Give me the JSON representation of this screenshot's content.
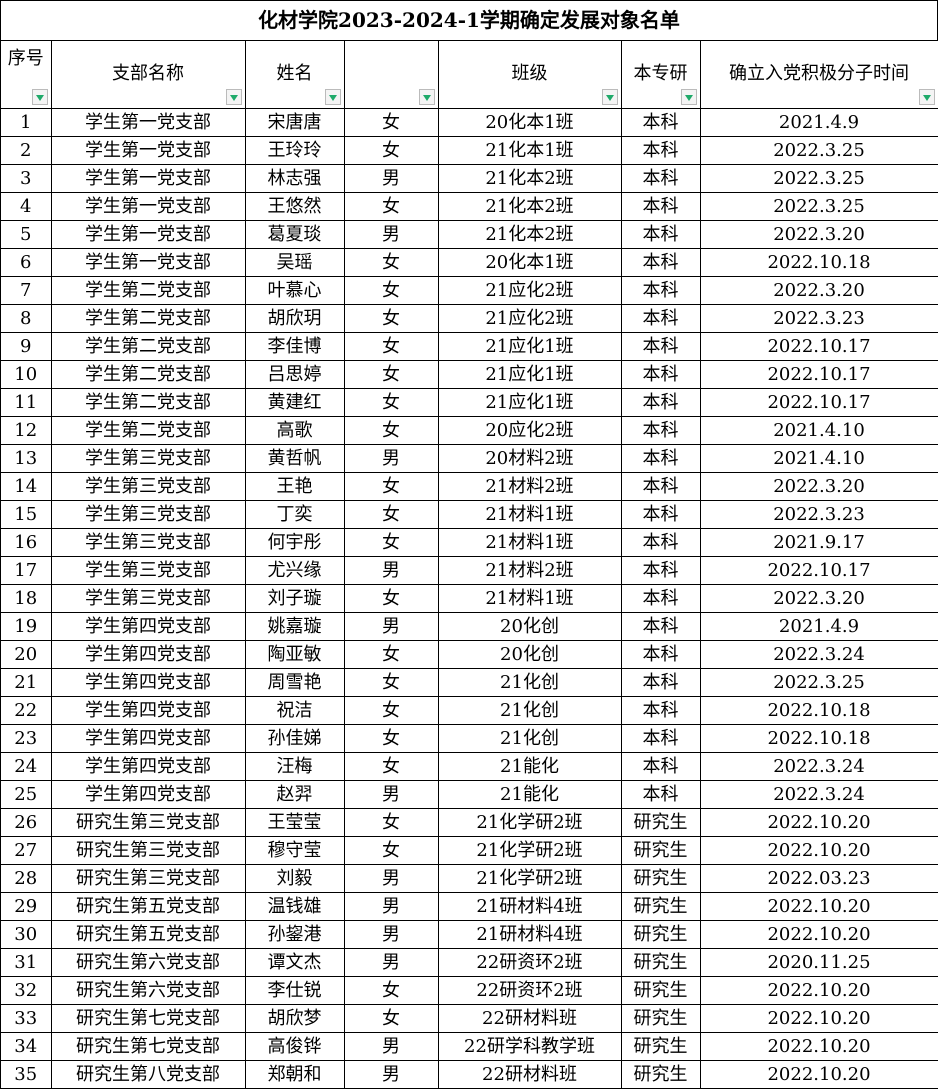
{
  "title": "化材学院2023-2024-1学期确定发展对象名单",
  "headers": [
    "序号",
    "支部名称",
    "姓名",
    "",
    "班级",
    "本专研",
    "确立入党积极分子时间"
  ],
  "filter_color": "#1faa6a",
  "rows": [
    [
      "1",
      "学生第一党支部",
      "宋唐唐",
      "女",
      "20化本1班",
      "本科",
      "2021.4.9"
    ],
    [
      "2",
      "学生第一党支部",
      "王玲玲",
      "女",
      "21化本1班",
      "本科",
      "2022.3.25"
    ],
    [
      "3",
      "学生第一党支部",
      "林志强",
      "男",
      "21化本2班",
      "本科",
      "2022.3.25"
    ],
    [
      "4",
      "学生第一党支部",
      "王悠然",
      "女",
      "21化本2班",
      "本科",
      "2022.3.25"
    ],
    [
      "5",
      "学生第一党支部",
      "葛夏琰",
      "男",
      "21化本2班",
      "本科",
      "2022.3.20"
    ],
    [
      "6",
      "学生第一党支部",
      "吴瑶",
      "女",
      "20化本1班",
      "本科",
      "2022.10.18"
    ],
    [
      "7",
      "学生第二党支部",
      "叶慕心",
      "女",
      "21应化2班",
      "本科",
      "2022.3.20"
    ],
    [
      "8",
      "学生第二党支部",
      "胡欣玥",
      "女",
      "21应化2班",
      "本科",
      "2022.3.23"
    ],
    [
      "9",
      "学生第二党支部",
      "李佳博",
      "女",
      "21应化1班",
      "本科",
      "2022.10.17"
    ],
    [
      "10",
      "学生第二党支部",
      "吕思婷",
      "女",
      "21应化1班",
      "本科",
      "2022.10.17"
    ],
    [
      "11",
      "学生第二党支部",
      "黄建红",
      "女",
      "21应化1班",
      "本科",
      "2022.10.17"
    ],
    [
      "12",
      "学生第二党支部",
      "高歌",
      "女",
      "20应化2班",
      "本科",
      "2021.4.10"
    ],
    [
      "13",
      "学生第三党支部",
      "黄哲帆",
      "男",
      "20材料2班",
      "本科",
      "2021.4.10"
    ],
    [
      "14",
      "学生第三党支部",
      "王艳",
      "女",
      "21材料2班",
      "本科",
      "2022.3.20"
    ],
    [
      "15",
      "学生第三党支部",
      "丁奕",
      "女",
      "21材料1班",
      "本科",
      "2022.3.23"
    ],
    [
      "16",
      "学生第三党支部",
      "何宇彤",
      "女",
      "21材料1班",
      "本科",
      "2021.9.17"
    ],
    [
      "17",
      "学生第三党支部",
      "尤兴缘",
      "男",
      "21材料2班",
      "本科",
      "2022.10.17"
    ],
    [
      "18",
      "学生第三党支部",
      "刘子璇",
      "女",
      "21材料1班",
      "本科",
      "2022.3.20"
    ],
    [
      "19",
      "学生第四党支部",
      "姚嘉璇",
      "男",
      "20化创",
      "本科",
      "2021.4.9"
    ],
    [
      "20",
      "学生第四党支部",
      "陶亚敏",
      "女",
      "20化创",
      "本科",
      "2022.3.24"
    ],
    [
      "21",
      "学生第四党支部",
      "周雪艳",
      "女",
      "21化创",
      "本科",
      "2022.3.25"
    ],
    [
      "22",
      "学生第四党支部",
      "祝洁",
      "女",
      "21化创",
      "本科",
      "2022.10.18"
    ],
    [
      "23",
      "学生第四党支部",
      "孙佳娣",
      "女",
      "21化创",
      "本科",
      "2022.10.18"
    ],
    [
      "24",
      "学生第四党支部",
      "汪梅",
      "女",
      "21能化",
      "本科",
      "2022.3.24"
    ],
    [
      "25",
      "学生第四党支部",
      "赵羿",
      "男",
      "21能化",
      "本科",
      "2022.3.24"
    ],
    [
      "26",
      "研究生第三党支部",
      "王莹莹",
      "女",
      "21化学研2班",
      "研究生",
      "2022.10.20"
    ],
    [
      "27",
      "研究生第三党支部",
      "穆守莹",
      "女",
      "21化学研2班",
      "研究生",
      "2022.10.20"
    ],
    [
      "28",
      "研究生第三党支部",
      "刘毅",
      "男",
      "21化学研2班",
      "研究生",
      "2022.03.23"
    ],
    [
      "29",
      "研究生第五党支部",
      "温钱雄",
      "男",
      "21研材料4班",
      "研究生",
      "2022.10.20"
    ],
    [
      "30",
      "研究生第五党支部",
      "孙鋆港",
      "男",
      "21研材料4班",
      "研究生",
      "2022.10.20"
    ],
    [
      "31",
      "研究生第六党支部",
      "谭文杰",
      "男",
      "22研资环2班",
      "研究生",
      "2020.11.25"
    ],
    [
      "32",
      "研究生第六党支部",
      "李仕锐",
      "女",
      "22研资环2班",
      "研究生",
      "2022.10.20"
    ],
    [
      "33",
      "研究生第七党支部",
      "胡欣梦",
      "女",
      "22研材料班",
      "研究生",
      "2022.10.20"
    ],
    [
      "34",
      "研究生第七党支部",
      "高俊铧",
      "男",
      "22研学科教学班",
      "研究生",
      "2022.10.20"
    ],
    [
      "35",
      "研究生第八党支部",
      "郑朝和",
      "男",
      "22研材料班",
      "研究生",
      "2022.10.20"
    ]
  ]
}
